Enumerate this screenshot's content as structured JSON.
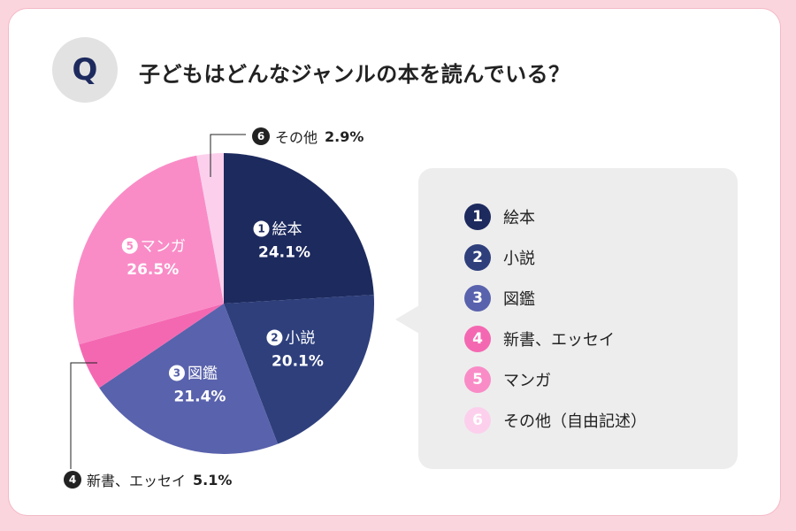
{
  "question": {
    "badge": "Q",
    "text": "子どもはどんなジャンルの本を読んでいる？"
  },
  "colors": {
    "background": "#fbd5dd",
    "card": "#ffffff",
    "legend_bg": "#ededed"
  },
  "chart_data": {
    "type": "pie",
    "unit": "%",
    "slices": [
      {
        "num": "1",
        "name": "絵本",
        "value": 24.1,
        "color": "#1d2a5e",
        "display": "24.1%"
      },
      {
        "num": "2",
        "name": "小説",
        "value": 20.1,
        "color": "#2e3f7c",
        "display": "20.1%"
      },
      {
        "num": "3",
        "name": "図鑑",
        "value": 21.4,
        "color": "#5962ac",
        "display": "21.4%"
      },
      {
        "num": "4",
        "name": "新書、エッセイ",
        "value": 5.1,
        "color": "#f468b2",
        "display": "5.1%"
      },
      {
        "num": "5",
        "name": "マンガ",
        "value": 26.5,
        "color": "#f98cc7",
        "display": "26.5%"
      },
      {
        "num": "6",
        "name": "その他",
        "value": 2.9,
        "color": "#fcd0ec",
        "display": "2.9%"
      }
    ],
    "legend": [
      {
        "num": "1",
        "label": "絵本"
      },
      {
        "num": "2",
        "label": "小説"
      },
      {
        "num": "3",
        "label": "図鑑"
      },
      {
        "num": "4",
        "label": "新書、エッセイ"
      },
      {
        "num": "5",
        "label": "マンガ"
      },
      {
        "num": "6",
        "label": "その他（自由記述）"
      }
    ]
  }
}
